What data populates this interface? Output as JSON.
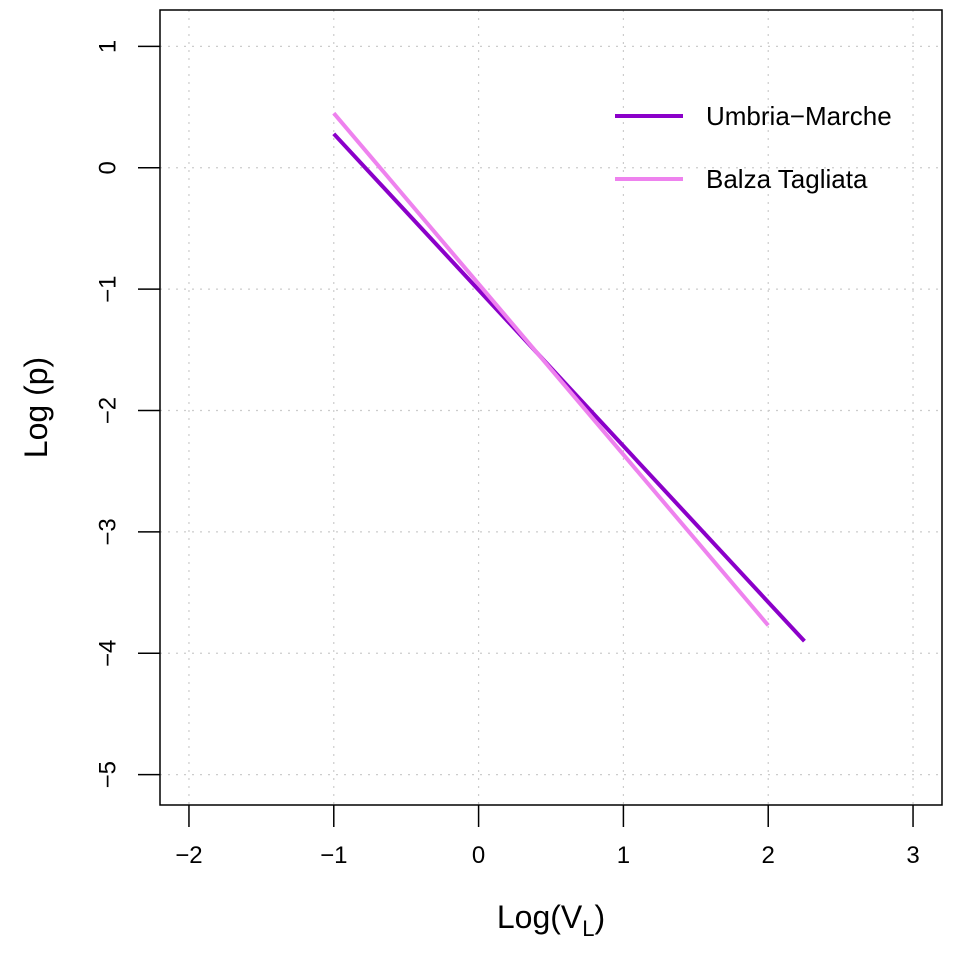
{
  "chart_data": {
    "type": "line",
    "xlabel": "Log(V",
    "xlabel_subscript": "L",
    "xlabel_suffix": ")",
    "ylabel": "Log (p)",
    "xlim": [
      -2.2,
      3.2
    ],
    "ylim": [
      -5.25,
      1.3
    ],
    "x_ticks": [
      -2,
      -1,
      0,
      1,
      2,
      3
    ],
    "x_tick_labels": [
      "−2",
      "−1",
      "0",
      "1",
      "2",
      "3"
    ],
    "y_ticks": [
      -5,
      -4,
      -3,
      -2,
      -1,
      0,
      1
    ],
    "y_tick_labels": [
      "−5",
      "−4",
      "−3",
      "−2",
      "−1",
      "0",
      "1"
    ],
    "grid": true,
    "legend_position": "top-right",
    "series": [
      {
        "name": "Umbria−Marche",
        "color": "#8B00C9",
        "x": [
          -1,
          2.25
        ],
        "y": [
          0.28,
          -3.9
        ]
      },
      {
        "name": "Balza Tagliata",
        "color": "#EE82EE",
        "x": [
          -1,
          2
        ],
        "y": [
          0.45,
          -3.77
        ]
      }
    ]
  }
}
